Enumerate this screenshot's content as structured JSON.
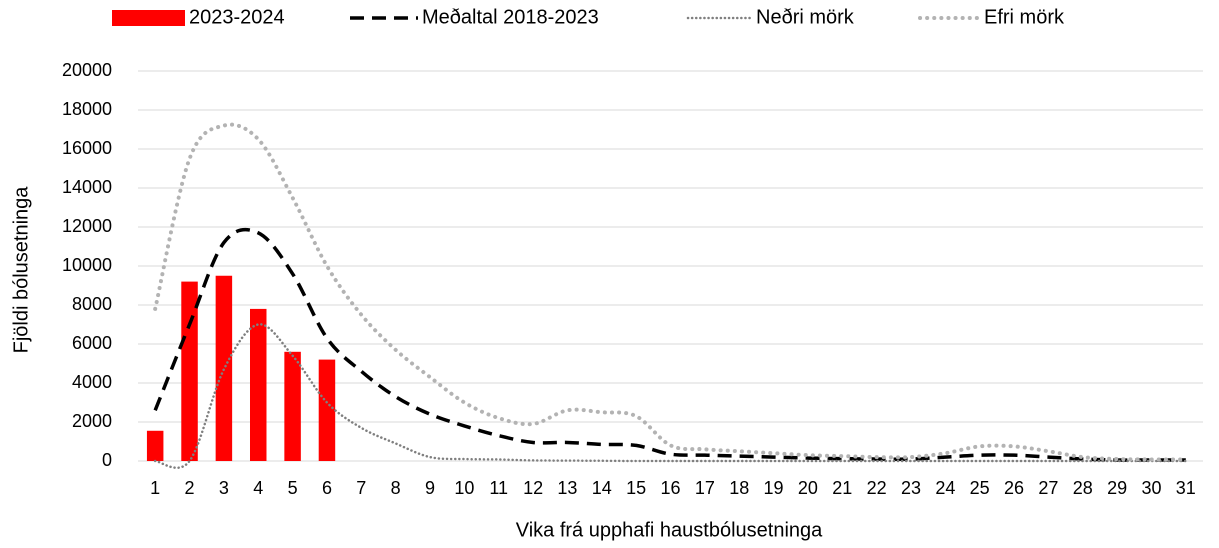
{
  "chart_data": {
    "type": "combo",
    "x_label": "Vika frá upphafi haustbólusetninga",
    "y_label": "Fjöldi bólusetninga",
    "categories": [
      "1",
      "2",
      "3",
      "4",
      "5",
      "6",
      "7",
      "8",
      "9",
      "10",
      "11",
      "12",
      "13",
      "14",
      "15",
      "16",
      "17",
      "18",
      "19",
      "20",
      "21",
      "22",
      "23",
      "24",
      "25",
      "26",
      "27",
      "28",
      "29",
      "30",
      "31"
    ],
    "series": [
      {
        "name": "2023-2024",
        "type": "bar",
        "color": "#ff0000",
        "values": [
          1550,
          9200,
          9500,
          7800,
          5600,
          5200,
          null,
          null,
          null,
          null,
          null,
          null,
          null,
          null,
          null,
          null,
          null,
          null,
          null,
          null,
          null,
          null,
          null,
          null,
          null,
          null,
          null,
          null,
          null,
          null,
          null
        ]
      },
      {
        "name": "Meðaltal 2018-2023",
        "type": "line",
        "color": "#000000",
        "line_style": "dashed",
        "values": [
          2600,
          7000,
          11200,
          11700,
          9600,
          6300,
          4600,
          3300,
          2400,
          1800,
          1300,
          950,
          950,
          850,
          800,
          350,
          300,
          250,
          200,
          150,
          120,
          100,
          100,
          200,
          300,
          300,
          200,
          100,
          50,
          50,
          50
        ]
      },
      {
        "name": "Neðri mörk",
        "type": "line",
        "color": "#7f7f7f",
        "line_style": "dotted",
        "values": [
          0,
          0,
          4700,
          7000,
          5400,
          3000,
          1700,
          900,
          200,
          100,
          80,
          30,
          20,
          10,
          0,
          0,
          0,
          0,
          0,
          0,
          0,
          0,
          0,
          0,
          0,
          0,
          0,
          0,
          0,
          0,
          0
        ]
      },
      {
        "name": "Efri mörk",
        "type": "line",
        "color": "#b3b3b3",
        "line_style": "dotted-thick",
        "values": [
          7800,
          15500,
          17200,
          16500,
          13500,
          10000,
          7500,
          5700,
          4300,
          3000,
          2200,
          1900,
          2600,
          2500,
          2300,
          800,
          600,
          500,
          400,
          300,
          250,
          200,
          200,
          400,
          750,
          750,
          500,
          200,
          100,
          80,
          80
        ]
      }
    ],
    "ylim": [
      0,
      20000
    ],
    "yticks": [
      0,
      2000,
      4000,
      6000,
      8000,
      10000,
      12000,
      14000,
      16000,
      18000,
      20000
    ],
    "grid": true,
    "legend": "top"
  }
}
